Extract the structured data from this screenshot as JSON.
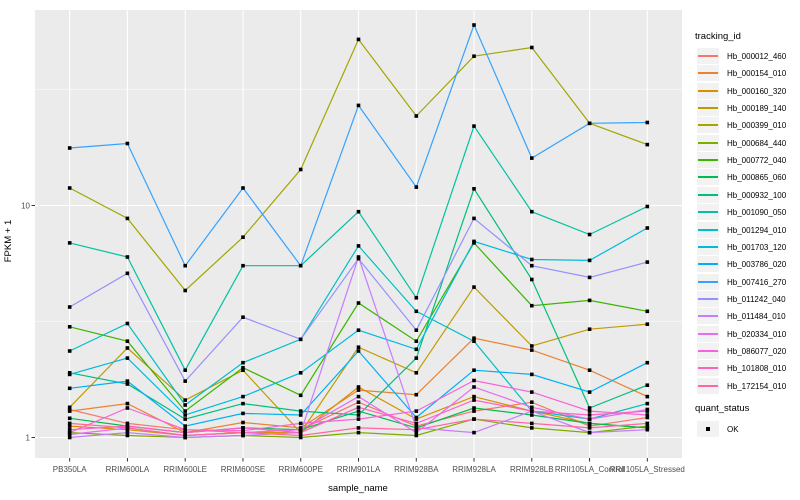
{
  "figure": {
    "y_axis": {
      "title": "FPKM + 1",
      "ticks": [
        {
          "label": "1",
          "value": 1
        },
        {
          "label": "10",
          "value": 10
        }
      ],
      "minor_breaks": [
        3.1623,
        31.623
      ]
    },
    "x_axis": {
      "title": "sample_name"
    },
    "legend": {
      "tracking_title": "tracking_id",
      "quant_title": "quant_status",
      "quant_items": [
        {
          "label": "OK"
        }
      ]
    },
    "colors": {
      "panel_bg": "#EBEBEB",
      "grid": "#FFFFFF",
      "marker": "#000000",
      "tick_label": "#4D4D4D",
      "axis_title": "#000000",
      "tick_mark": "#333333",
      "legend_key_bg": "#F2F2F2"
    }
  },
  "chart_data": {
    "type": "line",
    "title": "",
    "xlabel": "sample_name",
    "ylabel": "FPKM + 1",
    "y_scale": "log10",
    "ylim": [
      0.93,
      71
    ],
    "grid": true,
    "legend_position": "right",
    "point_shape": "filled-black-square",
    "quant_status": "OK",
    "categories": [
      "PB350LA",
      "RRIM600LA",
      "RRIM600LE",
      "RRIM600SE",
      "RRIM600PE",
      "RRIM901LA",
      "RRIM928BA",
      "RRIM928LA",
      "RRIM928LB",
      "RRII105LA_Control",
      "RRII105LA_Stressed"
    ],
    "series": [
      {
        "name": "Hb_000012_460",
        "color": "#F8766D",
        "values": [
          1.32,
          1.15,
          1.08,
          1.05,
          1.08,
          1.42,
          1.12,
          1.3,
          1.42,
          1.12,
          1.22
        ]
      },
      {
        "name": "Hb_000154_010",
        "color": "#EA8331",
        "values": [
          1.3,
          1.4,
          1.05,
          1.16,
          1.1,
          1.6,
          1.53,
          2.68,
          2.38,
          1.95,
          1.5
        ]
      },
      {
        "name": "Hb_000160_320",
        "color": "#D89000",
        "values": [
          1.12,
          1.08,
          1.02,
          1.05,
          1.05,
          1.65,
          1.2,
          1.5,
          1.3,
          1.15,
          1.1
        ]
      },
      {
        "name": "Hb_000189_140",
        "color": "#C09B00",
        "values": [
          1.35,
          2.43,
          1.45,
          1.95,
          1.05,
          2.45,
          1.9,
          4.45,
          2.48,
          2.93,
          3.08
        ]
      },
      {
        "name": "Hb_000399_010",
        "color": "#A3A500",
        "values": [
          11.9,
          8.8,
          4.3,
          7.3,
          14.3,
          52,
          24.3,
          44,
          48,
          22.6,
          18.3
        ]
      },
      {
        "name": "Hb_000684_440",
        "color": "#7CAE00",
        "values": [
          1.05,
          1.02,
          1.0,
          1.02,
          1.0,
          1.05,
          1.02,
          1.2,
          1.1,
          1.05,
          1.12
        ]
      },
      {
        "name": "Hb_000772_040",
        "color": "#39B600",
        "values": [
          3.0,
          2.6,
          1.3,
          2.0,
          1.52,
          3.8,
          2.6,
          6.9,
          3.7,
          3.9,
          3.5
        ]
      },
      {
        "name": "Hb_000865_060",
        "color": "#00BB4E",
        "values": [
          1.21,
          1.12,
          1.05,
          1.1,
          1.08,
          1.3,
          1.1,
          1.34,
          1.25,
          1.15,
          1.1
        ]
      },
      {
        "name": "Hb_000932_100",
        "color": "#00BF7D",
        "values": [
          1.9,
          1.7,
          1.2,
          1.4,
          1.3,
          1.25,
          2.2,
          11.8,
          4.8,
          1.34,
          1.68
        ]
      },
      {
        "name": "Hb_001090_050",
        "color": "#00C1A3",
        "values": [
          6.9,
          6.0,
          1.95,
          5.5,
          5.5,
          9.4,
          4.0,
          22,
          9.4,
          7.5,
          9.9
        ]
      },
      {
        "name": "Hb_001294_010",
        "color": "#00BFC4",
        "values": [
          2.36,
          3.1,
          1.38,
          2.1,
          2.65,
          6.7,
          3.5,
          2.6,
          1.3,
          1.2,
          1.4
        ]
      },
      {
        "name": "Hb_001703_120",
        "color": "#00BAE0",
        "values": [
          1.87,
          2.2,
          1.25,
          1.5,
          1.9,
          2.9,
          2.4,
          7.0,
          5.85,
          5.8,
          8.0
        ]
      },
      {
        "name": "Hb_003786_020",
        "color": "#00B0F6",
        "values": [
          1.63,
          1.75,
          1.12,
          1.27,
          1.25,
          2.36,
          1.22,
          1.95,
          1.87,
          1.57,
          2.1
        ]
      },
      {
        "name": "Hb_007416_270",
        "color": "#35A2FF",
        "values": [
          17.7,
          18.5,
          5.5,
          11.9,
          5.5,
          27,
          12,
          60,
          16,
          22.6,
          22.8
        ]
      },
      {
        "name": "Hb_011242_040",
        "color": "#9590FF",
        "values": [
          3.65,
          5.1,
          1.75,
          3.3,
          2.65,
          5.9,
          2.9,
          8.8,
          5.5,
          4.9,
          5.7
        ]
      },
      {
        "name": "Hb_011484_010",
        "color": "#C77CFF",
        "values": [
          1.0,
          1.05,
          1.0,
          1.02,
          1.05,
          6.0,
          1.1,
          1.05,
          1.3,
          1.05,
          1.08
        ]
      },
      {
        "name": "Hb_020334_010",
        "color": "#E76BF3",
        "values": [
          1.03,
          1.1,
          1.02,
          1.05,
          1.08,
          1.5,
          1.05,
          1.65,
          1.35,
          1.2,
          1.32
        ]
      },
      {
        "name": "Hb_086077_020",
        "color": "#FA62DB",
        "values": [
          1.05,
          1.34,
          1.08,
          1.07,
          1.15,
          1.2,
          1.3,
          1.76,
          1.57,
          1.3,
          1.25
        ]
      },
      {
        "name": "Hb_101808_010",
        "color": "#FF61C3",
        "values": [
          1.08,
          1.12,
          1.05,
          1.1,
          1.05,
          1.35,
          1.15,
          1.45,
          1.3,
          1.25,
          1.3
        ]
      },
      {
        "name": "Hb_172154_010",
        "color": "#FF67A4",
        "values": [
          1.15,
          1.1,
          1.02,
          1.05,
          1.02,
          1.1,
          1.08,
          1.2,
          1.15,
          1.1,
          1.15
        ]
      }
    ]
  }
}
